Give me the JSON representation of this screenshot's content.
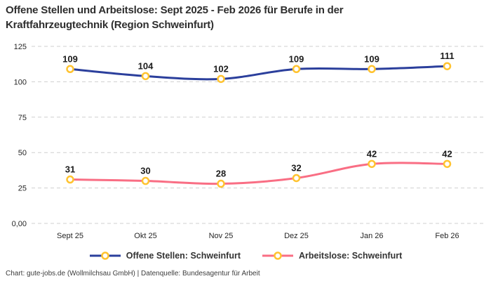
{
  "title": "Offene Stellen und Arbeitslose: Sept 2025 - Feb 2026 für Berufe in der Kraftfahrzeugtechnik (Region Schweinfurt)",
  "footer": "Chart: gute-jobs.de (Wollmilchsau GmbH) | Datenquelle: Bundesagentur für Arbeit",
  "colors": {
    "offene_stellen": "#2b3f9c",
    "arbeitslose": "#f96e84",
    "marker_ring": "#ffc330",
    "marker_fill": "#ffffff",
    "grid": "#cfcfcf",
    "title_text": "#2e2e2e"
  },
  "chart_data": {
    "type": "line",
    "title": "Offene Stellen und Arbeitslose: Sept 2025 - Feb 2026 für Berufe in der Kraftfahrzeugtechnik (Region Schweinfurt)",
    "categories": [
      "Sept 25",
      "Okt 25",
      "Nov 25",
      "Dez 25",
      "Jan 26",
      "Feb 26"
    ],
    "series": [
      {
        "name": "Offene Stellen: Schweinfurt",
        "values": [
          109,
          104,
          102,
          109,
          109,
          111
        ],
        "color": "#2b3f9c"
      },
      {
        "name": "Arbeitslose: Schweinfurt",
        "values": [
          31,
          30,
          28,
          32,
          42,
          42
        ],
        "color": "#f96e84"
      }
    ],
    "xlabel": "",
    "ylabel": "",
    "ylim": [
      0,
      125
    ],
    "yticks": [
      0,
      25,
      50,
      75,
      100,
      125
    ],
    "ytick_labels": [
      "0,00",
      "25",
      "50",
      "75",
      "100",
      "125"
    ],
    "grid": "dashed-horizontal",
    "legend_position": "bottom",
    "marker": "open-circle-yellow",
    "data_labels": "above-points"
  }
}
